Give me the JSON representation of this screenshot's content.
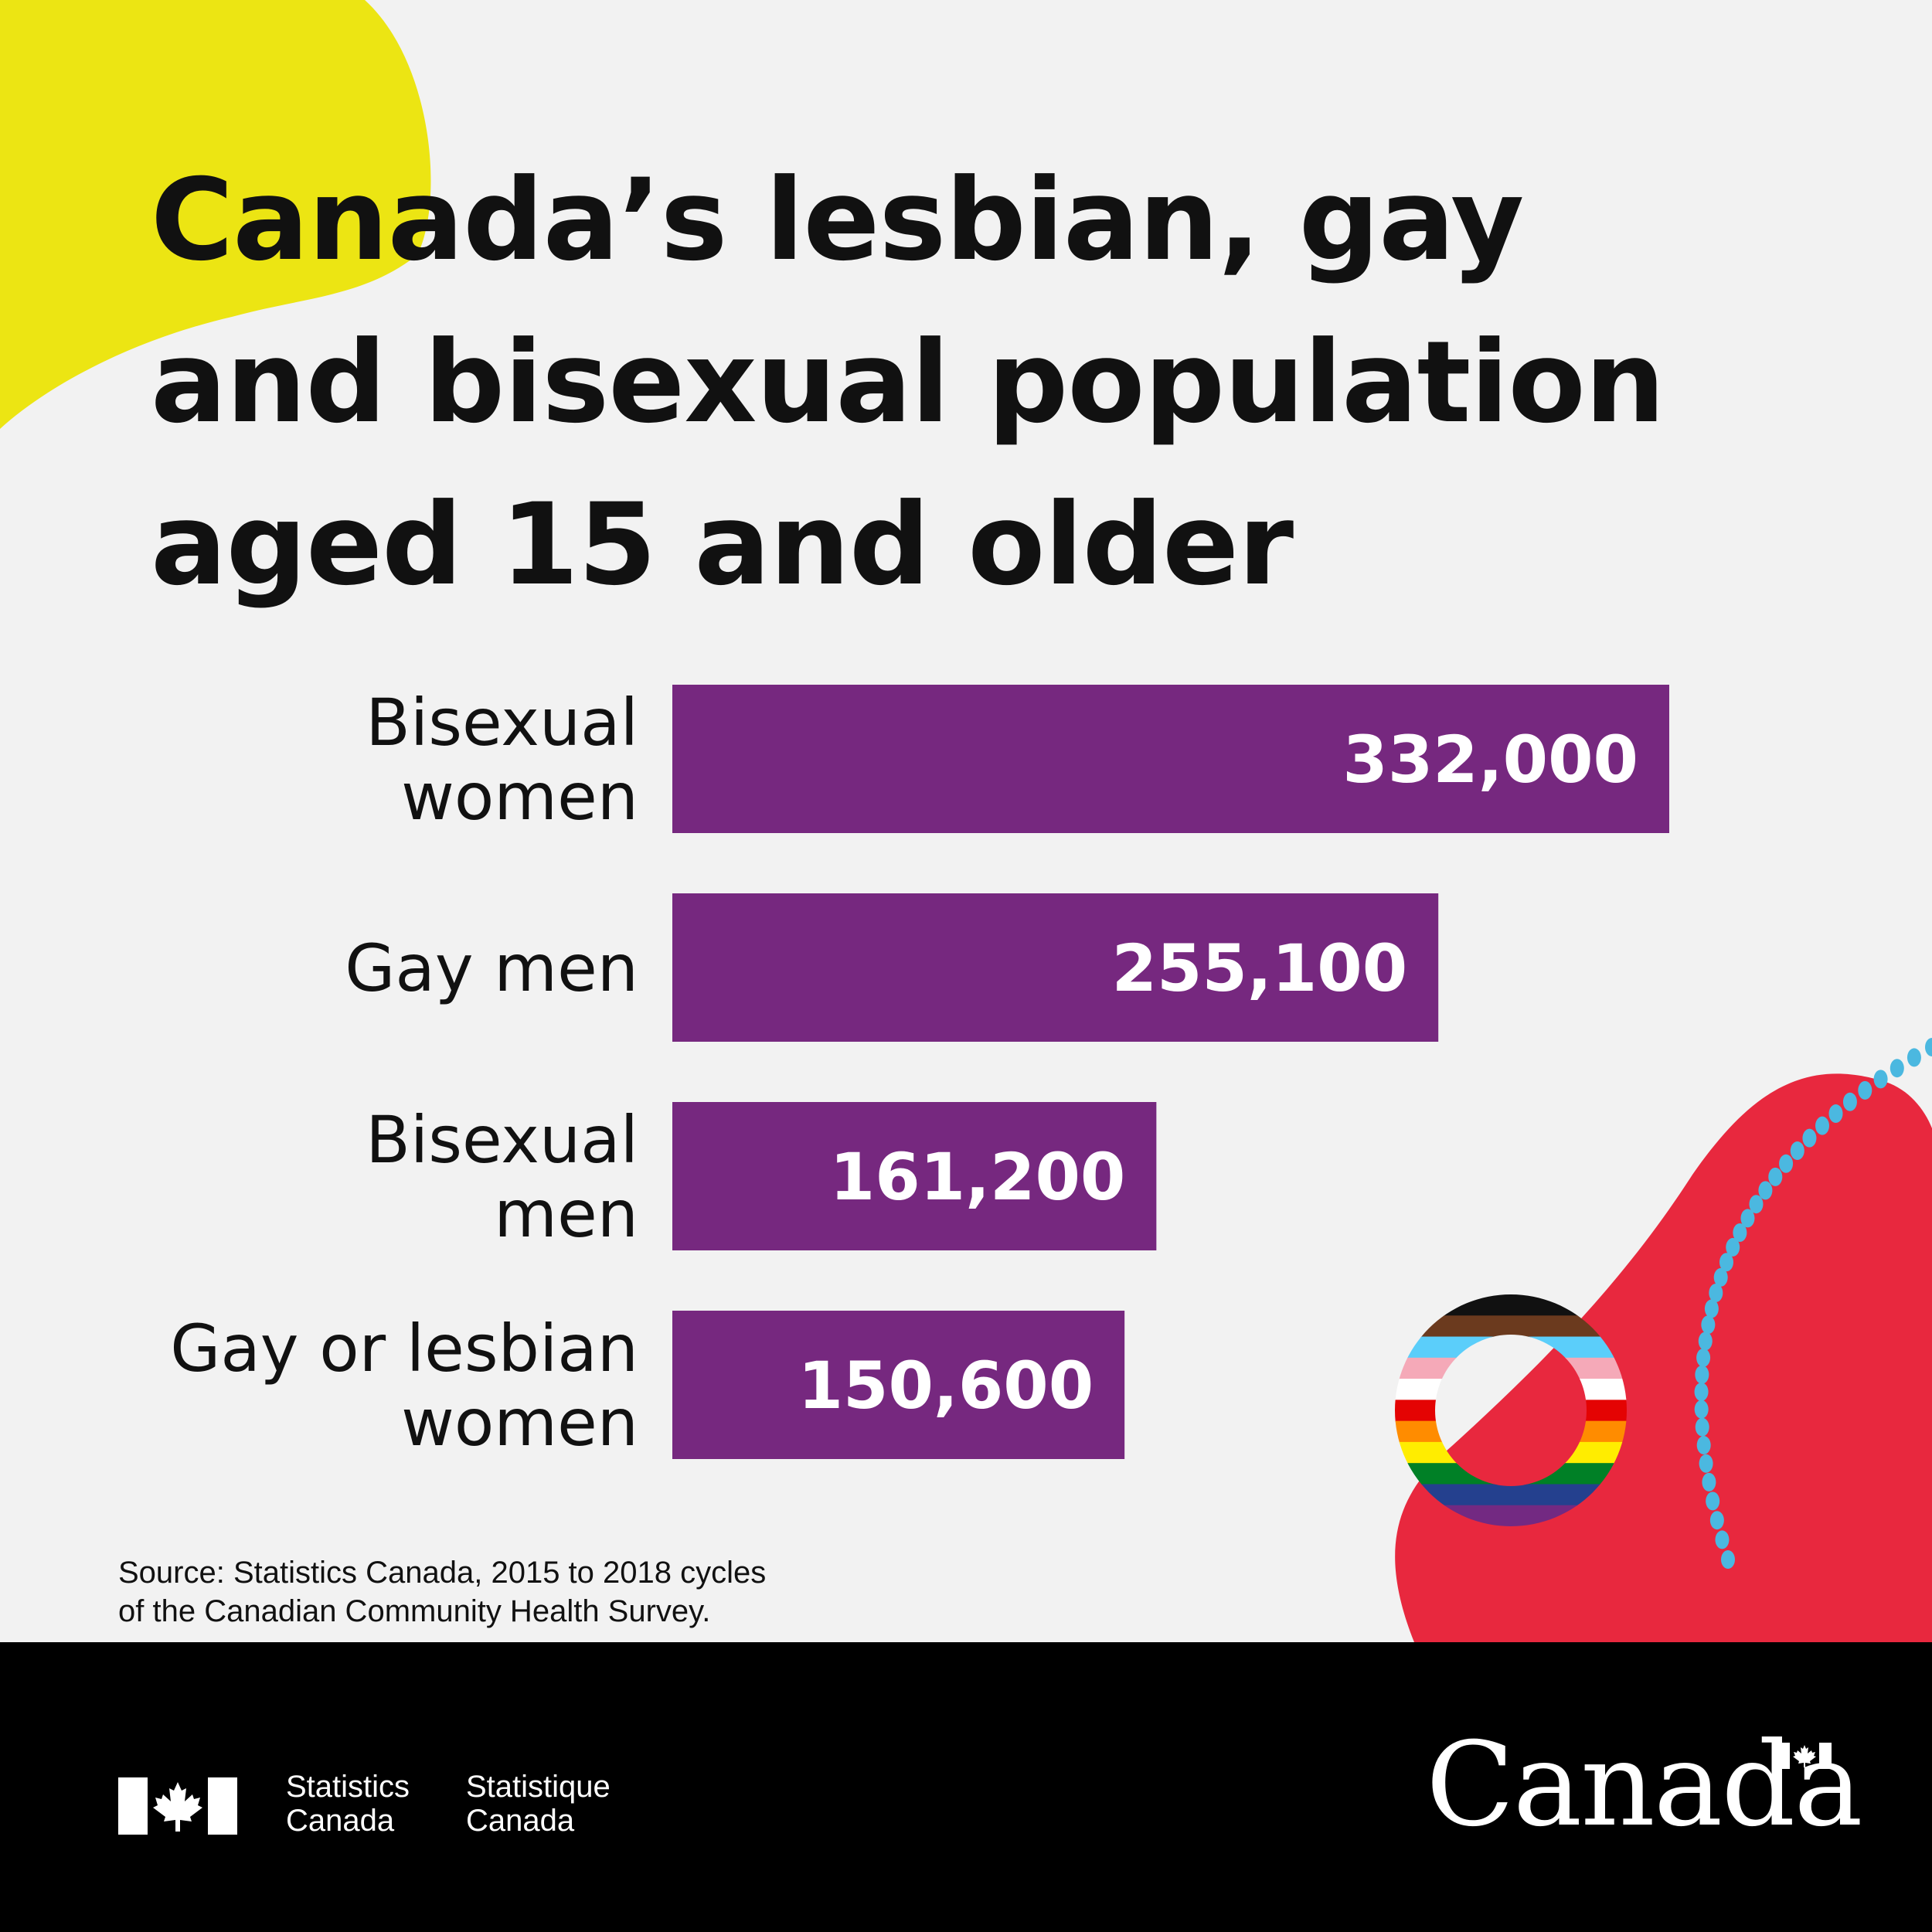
{
  "title_lines": [
    "Canada’s lesbian, gay",
    "and bisexual population",
    "aged 15 and older"
  ],
  "chart_data": {
    "type": "bar",
    "orientation": "horizontal",
    "title": "Canada’s lesbian, gay and bisexual population aged 15 and older",
    "categories": [
      [
        "Bisexual",
        "women"
      ],
      [
        "Gay men"
      ],
      [
        "Bisexual",
        "men"
      ],
      [
        "Gay or lesbian",
        "women"
      ]
    ],
    "values": [
      332000,
      255100,
      161200,
      150600
    ],
    "value_labels": [
      "332,000",
      "255,100",
      "161,200",
      "150,600"
    ],
    "bar_color": "#76287f",
    "grid": false,
    "legend": "none"
  },
  "source_lines": [
    "Source: Statistics Canada, 2015 to 2018 cycles",
    "of the Canadian Community Health Survey."
  ],
  "footer": {
    "signature_en": [
      "Statistics",
      "Canada"
    ],
    "signature_fr": [
      "Statistique",
      "Canada"
    ],
    "wordmark": "Canada"
  },
  "colors": {
    "background": "#f2f2f2",
    "yellow_blob": "#ece513",
    "red_blob": "#e8283e",
    "dots": "#4bb8e0",
    "footer": "#000000",
    "text": "#111111"
  },
  "icons": [
    "progress-pride-ring-icon",
    "canada-flag-icon",
    "maple-leaf-icon"
  ]
}
